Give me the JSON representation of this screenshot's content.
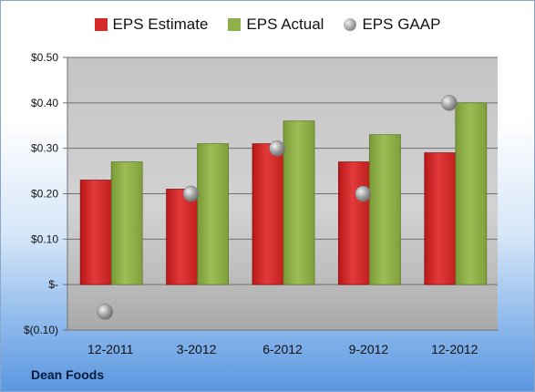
{
  "chart_data": {
    "type": "bar",
    "categories": [
      "12-2011",
      "3-2012",
      "6-2012",
      "9-2012",
      "12-2012"
    ],
    "series": [
      {
        "name": "EPS Estimate",
        "kind": "bar",
        "color": "#d42a2a",
        "values": [
          0.23,
          0.21,
          0.31,
          0.27,
          0.29
        ]
      },
      {
        "name": "EPS Actual",
        "kind": "bar",
        "color": "#8fb04a",
        "values": [
          0.27,
          0.31,
          0.36,
          0.33,
          0.4
        ]
      },
      {
        "name": "EPS GAAP",
        "kind": "marker",
        "color": "#999999",
        "values": [
          -0.06,
          0.2,
          0.3,
          0.2,
          0.4
        ]
      }
    ],
    "y_ticks": [
      {
        "value": 0.5,
        "label": "$0.50"
      },
      {
        "value": 0.4,
        "label": "$0.40"
      },
      {
        "value": 0.3,
        "label": "$0.30"
      },
      {
        "value": 0.2,
        "label": "$0.20"
      },
      {
        "value": 0.1,
        "label": "$0.10"
      },
      {
        "value": 0.0,
        "label": "$-"
      },
      {
        "value": -0.1,
        "label": "$(0.10)"
      }
    ],
    "ylim": [
      -0.1,
      0.5
    ],
    "grid": true,
    "legend": "top"
  },
  "company": "Dean Foods"
}
